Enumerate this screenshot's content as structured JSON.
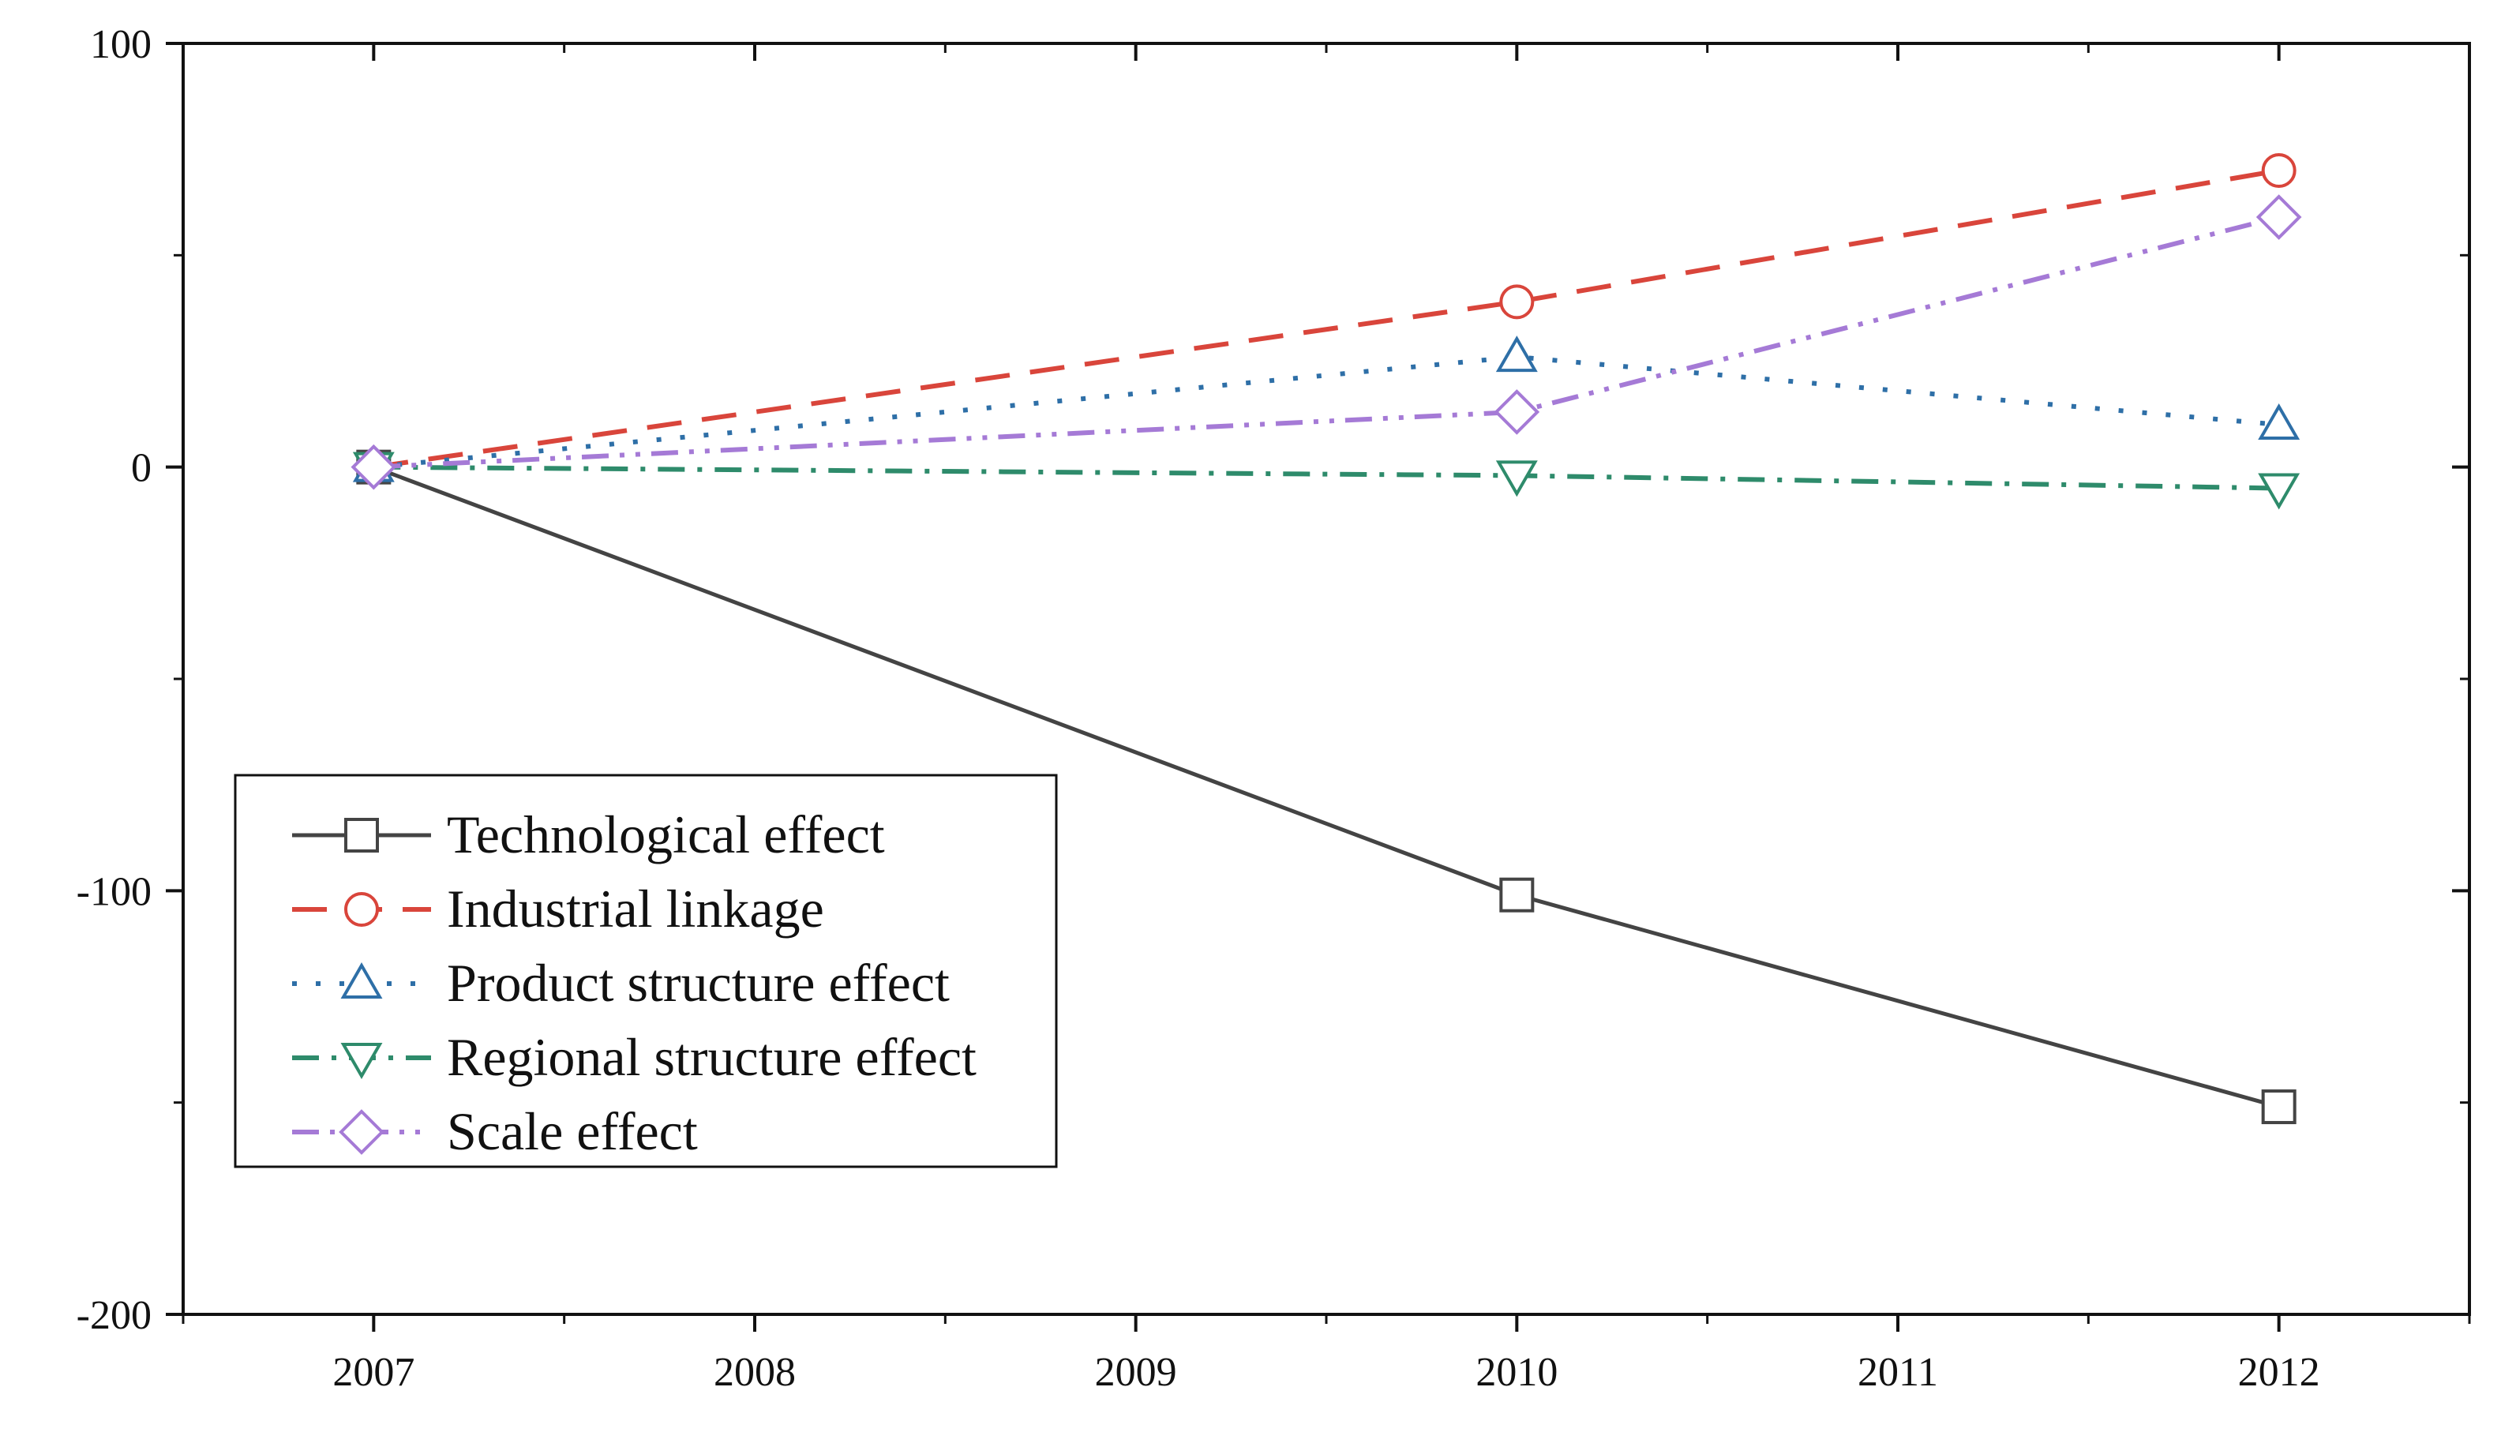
{
  "chart_data": {
    "type": "line",
    "title": "",
    "xlabel": "",
    "ylabel": "",
    "xlim": [
      2006.5,
      2012.5
    ],
    "ylim": [
      -200,
      100
    ],
    "x_ticks": [
      2007,
      2008,
      2009,
      2010,
      2011,
      2012
    ],
    "x_tick_labels": [
      "2007",
      "2008",
      "2009",
      "2010",
      "2011",
      "2012"
    ],
    "y_ticks": [
      -200,
      -100,
      0,
      100
    ],
    "y_tick_labels": [
      "-200",
      "-100",
      "0",
      "100"
    ],
    "legend_position": "lower-left",
    "grid": false,
    "series": [
      {
        "name": "Technological effect",
        "x": [
          2007,
          2010,
          2012
        ],
        "values": [
          0,
          -101,
          -151
        ],
        "color": "#444444",
        "dash": "solid",
        "marker": "square"
      },
      {
        "name": "Industrial linkage",
        "x": [
          2007,
          2010,
          2012
        ],
        "values": [
          0,
          39,
          70
        ],
        "color": "#d9453b",
        "dash": "dash",
        "marker": "circle"
      },
      {
        "name": "Product structure effect",
        "x": [
          2007,
          2010,
          2012
        ],
        "values": [
          0,
          26,
          10
        ],
        "color": "#2e6fa7",
        "dash": "dot",
        "marker": "triangle-up"
      },
      {
        "name": "Regional structure effect",
        "x": [
          2007,
          2010,
          2012
        ],
        "values": [
          0,
          -2,
          -5
        ],
        "color": "#2e8b6b",
        "dash": "dashdot",
        "marker": "triangle-down"
      },
      {
        "name": "Scale effect",
        "x": [
          2007,
          2010,
          2012
        ],
        "values": [
          0,
          13,
          59
        ],
        "color": "#a57ad6",
        "dash": "dashdotdot",
        "marker": "diamond"
      }
    ]
  }
}
